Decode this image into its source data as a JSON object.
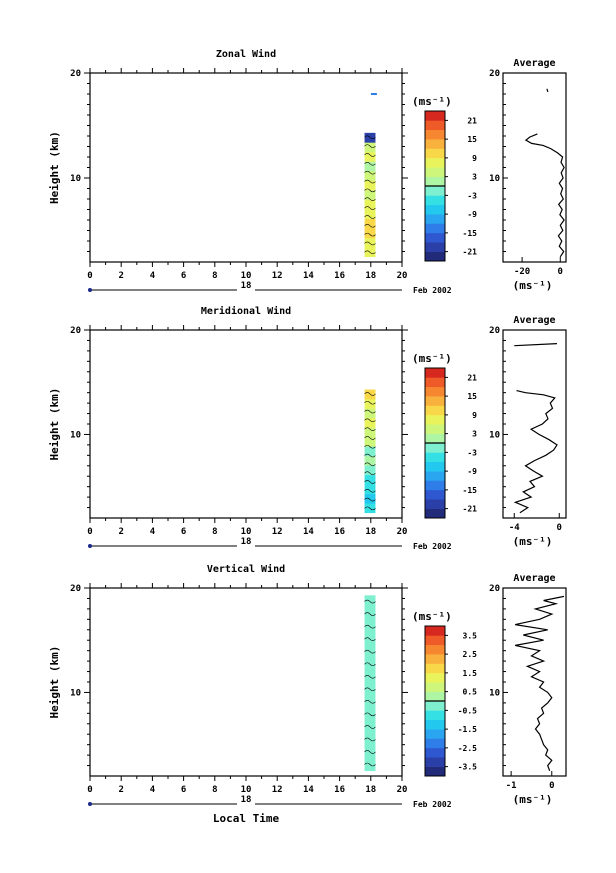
{
  "chart_data": [
    {
      "type": "heatmap",
      "title": "Zonal Wind",
      "ylabel": "Height (km)",
      "xlim": [
        0,
        20
      ],
      "ylim": [
        2,
        20
      ],
      "xticks": [
        "0",
        "2",
        "4",
        "6",
        "8",
        "10",
        "12",
        "14",
        "16",
        "18",
        "20"
      ],
      "yticks": [
        "10",
        "20"
      ],
      "date_marker": "18",
      "date_label": "Feb 2002",
      "colorbar": {
        "unit": "(ms⁻¹)",
        "ticks": [
          "21",
          "15",
          "9",
          "3",
          "-3",
          "-9",
          "-15",
          "-21"
        ],
        "min": -24,
        "max": 24
      },
      "data_band": {
        "x_start": 17.6,
        "x_end": 18.3,
        "y_start": 2.5,
        "y_end": 14.3,
        "values": [
          8,
          8,
          10,
          9,
          7,
          6,
          5,
          8,
          4,
          2,
          6,
          3,
          -21
        ],
        "stray_point": {
          "x": 18.2,
          "y": 18.0,
          "value": -15
        }
      },
      "profile": {
        "title": "Average",
        "xlim": [
          -30,
          3
        ],
        "xticks": [
          "-20",
          "0"
        ],
        "xlabel": "(ms⁻¹)",
        "points": [
          [
            0,
            2.5
          ],
          [
            1.8,
            3
          ],
          [
            -0.5,
            3.5
          ],
          [
            0.8,
            4
          ],
          [
            -1,
            4.5
          ],
          [
            1.3,
            5
          ],
          [
            0,
            5.5
          ],
          [
            2,
            6
          ],
          [
            -0.2,
            6.5
          ],
          [
            1,
            7
          ],
          [
            -0.8,
            7.5
          ],
          [
            1.6,
            8
          ],
          [
            0.2,
            8.5
          ],
          [
            1.2,
            9
          ],
          [
            -0.5,
            9.5
          ],
          [
            1.5,
            10
          ],
          [
            0.5,
            10.5
          ],
          [
            2,
            11
          ],
          [
            0.4,
            11.5
          ],
          [
            1.2,
            12
          ],
          [
            -1.5,
            12.4
          ],
          [
            -5,
            12.8
          ],
          [
            -9,
            13.1
          ],
          [
            -15,
            13.3
          ],
          [
            -18,
            13.6
          ],
          [
            -16,
            13.9
          ],
          [
            -12,
            14.2
          ]
        ],
        "stray": [
          [
            -7,
            18.5
          ],
          [
            -6.5,
            18.2
          ]
        ]
      }
    },
    {
      "type": "heatmap",
      "title": "Meridional Wind",
      "ylabel": "Height (km)",
      "xlim": [
        0,
        20
      ],
      "ylim": [
        2,
        20
      ],
      "xticks": [
        "0",
        "2",
        "4",
        "6",
        "8",
        "10",
        "12",
        "14",
        "16",
        "18",
        "20"
      ],
      "yticks": [
        "10",
        "20"
      ],
      "date_marker": "18",
      "date_label": "Feb 2002",
      "colorbar": {
        "unit": "(ms⁻¹)",
        "ticks": [
          "21",
          "15",
          "9",
          "3",
          "-3",
          "-9",
          "-15",
          "-21"
        ],
        "min": -24,
        "max": 24
      },
      "data_band": {
        "x_start": 17.6,
        "x_end": 18.3,
        "y_start": 2.5,
        "y_end": 14.3,
        "values": [
          -6,
          -8,
          -5,
          -4,
          -2,
          0,
          -2,
          3,
          4,
          6,
          5,
          8,
          9
        ]
      },
      "profile": {
        "title": "Average",
        "xlim": [
          -5,
          0.6
        ],
        "xticks": [
          "-4",
          "0"
        ],
        "xlabel": "(ms⁻¹)",
        "points": [
          [
            -3.5,
            2.5
          ],
          [
            -2.8,
            3
          ],
          [
            -3.9,
            3.5
          ],
          [
            -2.5,
            4
          ],
          [
            -3.2,
            4.5
          ],
          [
            -2.2,
            5
          ],
          [
            -2.6,
            5.5
          ],
          [
            -1.5,
            6
          ],
          [
            -2.3,
            6.5
          ],
          [
            -3,
            7
          ],
          [
            -2.2,
            7.5
          ],
          [
            -1.2,
            8
          ],
          [
            -0.5,
            8.5
          ],
          [
            -0.2,
            9
          ],
          [
            -0.9,
            9.5
          ],
          [
            -1.8,
            10
          ],
          [
            -2.5,
            10.5
          ],
          [
            -1.5,
            11
          ],
          [
            -1,
            11.5
          ],
          [
            -1.2,
            12
          ],
          [
            -0.6,
            12.5
          ],
          [
            -0.8,
            13
          ],
          [
            -0.4,
            13.5
          ],
          [
            -1.4,
            13.8
          ],
          [
            -3,
            14
          ],
          [
            -3.8,
            14.2
          ]
        ],
        "stray": [
          [
            -4,
            18.5
          ],
          [
            -0.2,
            18.7
          ]
        ]
      }
    },
    {
      "type": "heatmap",
      "title": "Vertical Wind",
      "ylabel": "Height (km)",
      "xlabel": "Local Time",
      "xlim": [
        0,
        20
      ],
      "ylim": [
        2,
        20
      ],
      "xticks": [
        "0",
        "2",
        "4",
        "6",
        "8",
        "10",
        "12",
        "14",
        "16",
        "18",
        "20"
      ],
      "yticks": [
        "10",
        "20"
      ],
      "date_marker": "18",
      "date_label": "Feb 2002",
      "colorbar": {
        "unit": "(ms⁻¹)",
        "ticks": [
          "3.5",
          "2.5",
          "1.5",
          "0.5",
          "-0.5",
          "-1.5",
          "-2.5",
          "-3.5"
        ],
        "min": -4,
        "max": 4
      },
      "data_band": {
        "x_start": 17.6,
        "x_end": 18.3,
        "y_start": 2.5,
        "y_end": 19.3,
        "values": [
          -0.3,
          -0.2,
          -0.4,
          -0.1,
          -0.3,
          -0.2,
          -0.5,
          -0.2,
          -0.1,
          -0.3,
          -0.2,
          -0.4,
          -0.3,
          -0.2,
          -0.1,
          -0.2,
          -0.3
        ]
      },
      "profile": {
        "title": "Average",
        "xlim": [
          -1.2,
          0.35
        ],
        "xticks": [
          "-1",
          "0"
        ],
        "xlabel": "(ms⁻¹)",
        "points": [
          [
            -0.05,
            2.5
          ],
          [
            -0.1,
            3
          ],
          [
            0,
            3.5
          ],
          [
            -0.15,
            4
          ],
          [
            -0.1,
            4.5
          ],
          [
            -0.2,
            5
          ],
          [
            -0.25,
            5.5
          ],
          [
            -0.3,
            6
          ],
          [
            -0.4,
            6.5
          ],
          [
            -0.3,
            7
          ],
          [
            -0.35,
            7.5
          ],
          [
            -0.2,
            8
          ],
          [
            -0.25,
            8.5
          ],
          [
            -0.1,
            9
          ],
          [
            0,
            9.5
          ],
          [
            -0.1,
            10
          ],
          [
            -0.3,
            10.5
          ],
          [
            -0.2,
            11
          ],
          [
            -0.5,
            11.5
          ],
          [
            -0.3,
            12
          ],
          [
            -0.6,
            12.5
          ],
          [
            -0.2,
            13
          ],
          [
            -0.5,
            13.5
          ],
          [
            -0.3,
            14
          ],
          [
            -0.9,
            14.5
          ],
          [
            -0.2,
            15
          ],
          [
            -0.7,
            15.5
          ],
          [
            -0.1,
            16
          ],
          [
            -0.9,
            16.5
          ],
          [
            -0.3,
            17
          ],
          [
            0,
            17.5
          ],
          [
            -0.4,
            18
          ],
          [
            0.1,
            18.5
          ],
          [
            -0.2,
            18.8
          ],
          [
            0.3,
            19.2
          ]
        ]
      }
    }
  ]
}
